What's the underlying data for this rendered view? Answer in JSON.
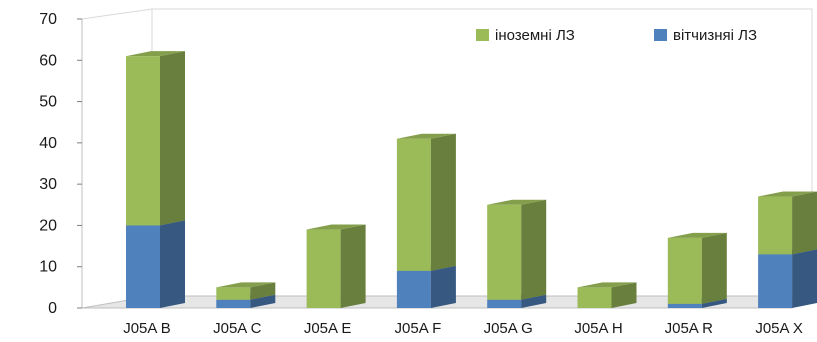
{
  "chart_data": {
    "type": "bar",
    "stacked": true,
    "three_d": true,
    "categories": [
      "J05A B",
      "J05A C",
      "J05A E",
      "J05A F",
      "J05A G",
      "J05A H",
      "J05A R",
      "J05A X"
    ],
    "series": [
      {
        "name": "вітчизняі ЛЗ",
        "values": [
          20,
          2,
          0,
          9,
          2,
          0,
          1,
          13
        ],
        "color": "#4f81bd"
      },
      {
        "name": "іноземні ЛЗ",
        "values": [
          41,
          3,
          19,
          32,
          23,
          5,
          16,
          14
        ],
        "color": "#9bbb59"
      }
    ],
    "ylim": [
      0,
      70
    ],
    "yticks": [
      0,
      10,
      20,
      30,
      40,
      50,
      60,
      70
    ],
    "grid": false,
    "legend_position": "top-right",
    "title": "",
    "xlabel": "",
    "ylabel": ""
  }
}
